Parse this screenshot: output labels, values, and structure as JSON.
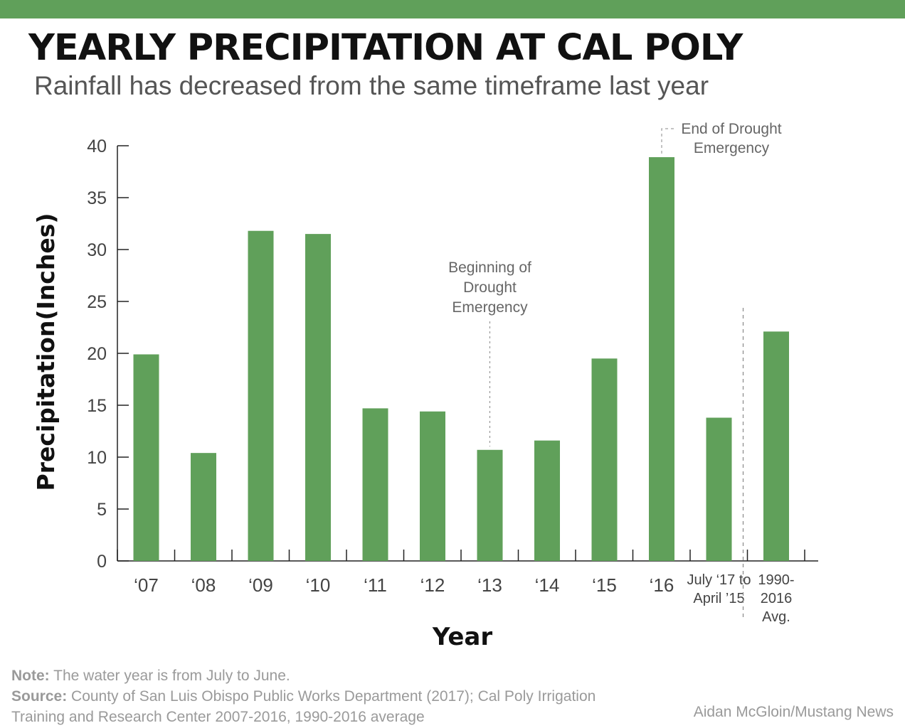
{
  "colors": {
    "accent": "#60a05a",
    "bar": "#60a05a",
    "axis": "#222222",
    "annotation": "#666666",
    "footer": "#9a9a9a"
  },
  "header": {
    "title": "YEARLY PRECIPITATION AT CAL POLY",
    "subtitle": "Rainfall has decreased from the same timeframe last year"
  },
  "chart_data": {
    "type": "bar",
    "xlabel": "Year",
    "ylabel": "Precipitation(Inches)",
    "ylim": [
      0,
      40
    ],
    "yticks": [
      0,
      5,
      10,
      15,
      20,
      25,
      30,
      35,
      40
    ],
    "categories": [
      "‘07",
      "‘08",
      "‘09",
      "‘10",
      "‘11",
      "‘12",
      "‘13",
      "‘14",
      "‘15",
      "‘16",
      "July ‘17 to\nApril ’15",
      "1990-\n2016\nAvg."
    ],
    "values": [
      19.9,
      10.4,
      31.8,
      31.5,
      14.7,
      14.4,
      10.7,
      11.6,
      19.5,
      38.9,
      13.8,
      22.1
    ],
    "annotations": [
      {
        "category_index": 6,
        "text": "Beginning of\nDrought\nEmergency"
      },
      {
        "category_index": 9,
        "text": "End of Drought\nEmergency"
      }
    ],
    "separator_before_index": 11,
    "grid": false
  },
  "footer": {
    "note_label": "Note:",
    "note_text": " The water year is from July to June.",
    "source_label": "Source:",
    "source_text": " County of San Luis Obispo Public Works Department (2017); Cal Poly Irrigation Training and Research Center 2007-2016, 1990-2016 average",
    "credit": "Aidan McGloin/Mustang News"
  }
}
